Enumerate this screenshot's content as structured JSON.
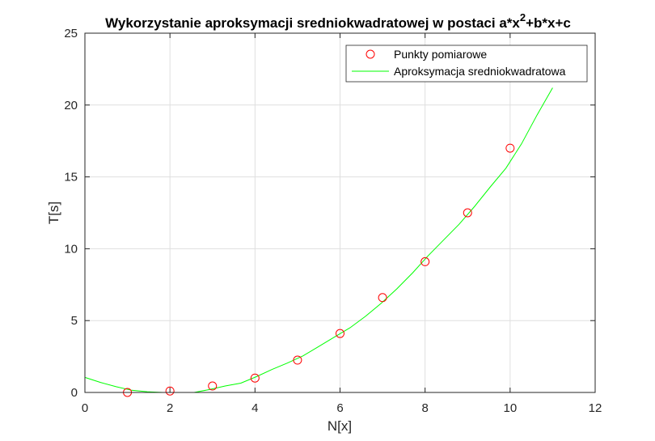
{
  "chart_data": {
    "type": "scatter",
    "title_main": "Wykorzystanie aproksymacji sredniokwadratowej w postaci a*x",
    "title_sup": "2",
    "title_tail": "+b*x+c",
    "xlabel": "N[x]",
    "ylabel": "T[s]",
    "xlim": [
      0,
      12
    ],
    "ylim": [
      0,
      25
    ],
    "x_ticks": [
      "0",
      "2",
      "4",
      "6",
      "8",
      "10",
      "12"
    ],
    "y_ticks": [
      "0",
      "5",
      "10",
      "15",
      "20",
      "25"
    ],
    "grid": true,
    "legend_position": "top-right",
    "series": [
      {
        "name": "Punkty pomiarowe",
        "style": "markers",
        "color": "#ff0000",
        "x": [
          1,
          2,
          3,
          4,
          5,
          6,
          7,
          8,
          9,
          10
        ],
        "y": [
          0.0,
          0.1,
          0.45,
          1.0,
          2.25,
          4.1,
          6.6,
          9.1,
          12.5,
          17.0
        ]
      },
      {
        "name": "Aproksymacja sredniokwadratowa",
        "style": "line",
        "color": "#00ff00",
        "x": [
          0,
          0.3667,
          0.7333,
          1.1,
          1.4667,
          1.8333,
          2.2,
          2.5667,
          2.9333,
          3.3,
          3.6667,
          4.0333,
          4.4,
          4.7667,
          5.1333,
          5.5,
          5.8667,
          6.2333,
          6.6,
          6.9667,
          7.3333,
          7.7,
          8.0667,
          8.4333,
          8.8,
          9.1667,
          9.5333,
          9.9,
          10.2667,
          10.6333,
          11.0
        ],
        "y": [
          1.05,
          0.7,
          0.4,
          0.15,
          0.05,
          0.0,
          0.0,
          0.0,
          0.2,
          0.45,
          0.65,
          1.1,
          1.6,
          2.05,
          2.55,
          3.2,
          3.85,
          4.5,
          5.3,
          6.2,
          7.2,
          8.3,
          9.5,
          10.6,
          11.7,
          12.95,
          14.3,
          15.6,
          17.3,
          19.3,
          21.2
        ]
      }
    ]
  }
}
